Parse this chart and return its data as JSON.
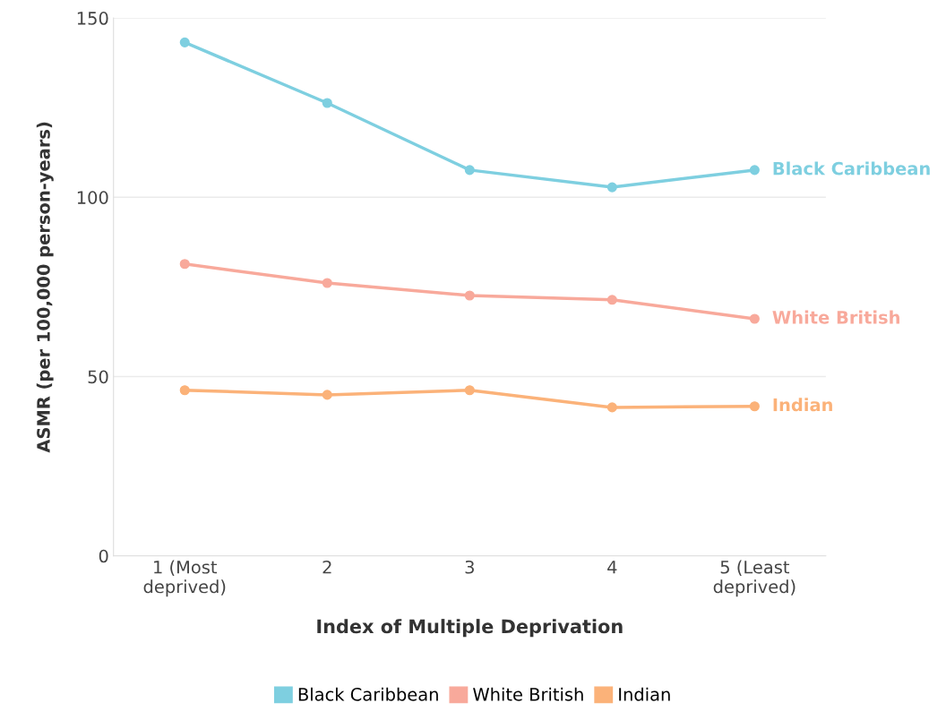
{
  "chart_data": {
    "type": "line",
    "xlabel": "Index of Multiple Deprivation",
    "ylabel": "ASMR (per 100,000 person-years)",
    "categories": [
      "1 (Most\ndeprived)",
      "2",
      "3",
      "4",
      "5 (Least\ndeprived)"
    ],
    "series": [
      {
        "name": "Black Caribbean",
        "color": "#7ecfe0",
        "values": [
          143.2,
          126.3,
          107.6,
          102.8,
          107.6
        ]
      },
      {
        "name": "White British",
        "color": "#f8a99b",
        "values": [
          81.4,
          76.1,
          72.6,
          71.4,
          66.1
        ]
      },
      {
        "name": "Indian",
        "color": "#fbb279",
        "values": [
          46.2,
          44.9,
          46.2,
          41.4,
          41.7
        ]
      }
    ],
    "ylim": [
      0,
      150
    ],
    "yticks": [
      0,
      50,
      100,
      150
    ],
    "grid": "y",
    "legend": "bottom",
    "marker": "circle",
    "line_style": "solid"
  }
}
